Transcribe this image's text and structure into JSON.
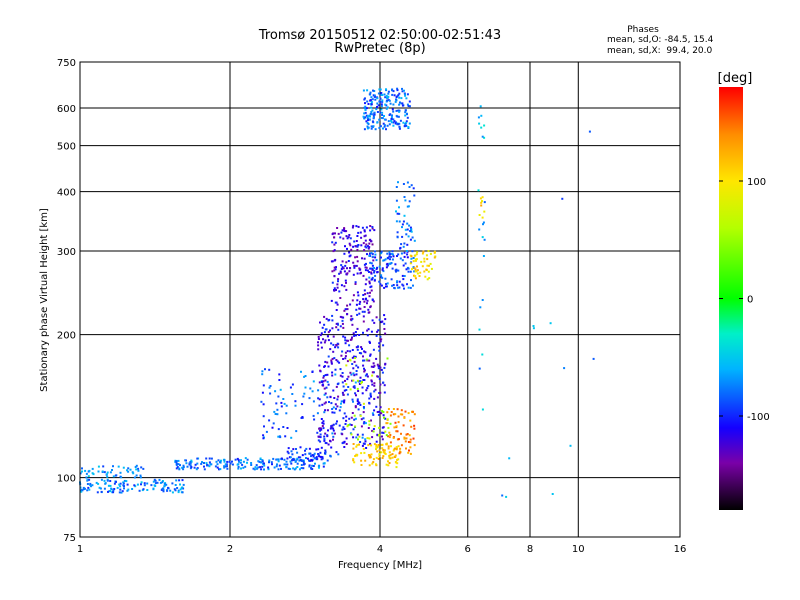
{
  "chart_data": {
    "type": "scatter",
    "title": "Tromsø 20150512 02:50:00-02:51:43",
    "subtitle": "RwPretec (8p)",
    "stats": {
      "heading": "Phases",
      "line_o": "mean, sd,O: -84.5, 15.4",
      "line_x": "mean, sd,X:  99.4, 20.0"
    },
    "xlabel": "Frequency [MHz]",
    "ylabel": "Stationary phase Virtual Height [km]",
    "x_scale": "log",
    "y_scale": "log",
    "xlim": [
      1,
      16
    ],
    "ylim": [
      75,
      750
    ],
    "x_ticks": [
      1,
      2,
      4,
      6,
      8,
      10,
      16
    ],
    "x_tick_labels": [
      "1",
      "2",
      "4",
      "6",
      "8",
      "10",
      "16"
    ],
    "y_ticks": [
      75,
      100,
      200,
      300,
      400,
      500,
      600,
      750
    ],
    "y_tick_labels": [
      "75",
      "100",
      "200",
      "300",
      "400",
      "500",
      "600",
      "750"
    ],
    "grid": true,
    "colorbar": {
      "label": "[deg]",
      "range": [
        -180,
        180
      ],
      "ticks": [
        100,
        0,
        -100
      ],
      "tick_labels": [
        "100",
        "0",
        "-100"
      ],
      "stops": [
        {
          "v": -180,
          "color": "#000000"
        },
        {
          "v": -140,
          "color": "#7a00a8"
        },
        {
          "v": -110,
          "color": "#1400ff"
        },
        {
          "v": -60,
          "color": "#00b4ff"
        },
        {
          "v": -30,
          "color": "#00f0c8"
        },
        {
          "v": 0,
          "color": "#00ff00"
        },
        {
          "v": 60,
          "color": "#b4ff00"
        },
        {
          "v": 100,
          "color": "#ffe600"
        },
        {
          "v": 140,
          "color": "#ff8c00"
        },
        {
          "v": 180,
          "color": "#ff0000"
        }
      ]
    },
    "clusters": [
      {
        "fmin": 1.0,
        "fmax": 1.62,
        "hmin": 93,
        "hmax": 99,
        "phase": -75,
        "n": 130
      },
      {
        "fmin": 1.0,
        "fmax": 1.35,
        "hmin": 100,
        "hmax": 106,
        "phase": -70,
        "n": 50
      },
      {
        "fmin": 1.55,
        "fmax": 3.1,
        "hmin": 104,
        "hmax": 110,
        "phase": -78,
        "n": 200
      },
      {
        "fmin": 2.6,
        "fmax": 3.3,
        "hmin": 108,
        "hmax": 116,
        "phase": -95,
        "n": 60
      },
      {
        "fmin": 2.3,
        "fmax": 3.9,
        "hmin": 120,
        "hmax": 170,
        "phase": -85,
        "n": 130
      },
      {
        "fmin": 3.0,
        "fmax": 4.1,
        "hmin": 115,
        "hmax": 220,
        "phase": -115,
        "n": 380
      },
      {
        "fmin": 3.2,
        "fmax": 3.9,
        "hmin": 220,
        "hmax": 340,
        "phase": -120,
        "n": 220
      },
      {
        "fmin": 3.8,
        "fmax": 4.7,
        "hmin": 250,
        "hmax": 300,
        "phase": -90,
        "n": 120
      },
      {
        "fmin": 4.3,
        "fmax": 4.7,
        "hmin": 300,
        "hmax": 420,
        "phase": -80,
        "n": 50
      },
      {
        "fmin": 3.7,
        "fmax": 4.6,
        "hmin": 540,
        "hmax": 660,
        "phase": -80,
        "n": 220
      },
      {
        "fmin": 4.6,
        "fmax": 5.2,
        "hmin": 260,
        "hmax": 300,
        "phase": 105,
        "n": 50
      },
      {
        "fmin": 3.5,
        "fmax": 4.4,
        "hmin": 105,
        "hmax": 118,
        "phase": 110,
        "n": 90
      },
      {
        "fmin": 4.1,
        "fmax": 4.7,
        "hmin": 112,
        "hmax": 140,
        "phase": 140,
        "n": 70
      },
      {
        "fmin": 3.4,
        "fmax": 4.2,
        "hmin": 120,
        "hmax": 180,
        "phase": 60,
        "n": 40
      },
      {
        "fmin": 6.3,
        "fmax": 6.5,
        "hmin": 100,
        "hmax": 650,
        "phase": -60,
        "n": 22
      },
      {
        "fmin": 6.3,
        "fmax": 6.5,
        "hmin": 350,
        "hmax": 410,
        "phase": 110,
        "n": 8
      },
      {
        "fmin": 7.0,
        "fmax": 11.0,
        "hmin": 88,
        "hmax": 620,
        "phase": -70,
        "n": 12
      }
    ]
  }
}
